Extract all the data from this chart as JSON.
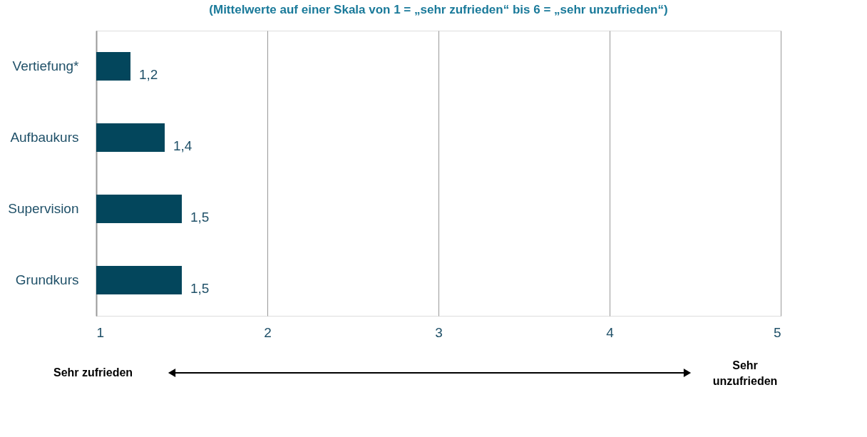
{
  "chart_data": {
    "type": "bar",
    "orientation": "horizontal",
    "subtitle": "(Mittelwerte auf einer Skala von 1 = „sehr zufrieden“ bis 6 = „sehr unzufrieden“)",
    "categories": [
      "Vertiefung*",
      "Aufbaukurs",
      "Supervision",
      "Grundkurs"
    ],
    "values": [
      1.2,
      1.4,
      1.5,
      1.5
    ],
    "value_labels": [
      "1,2",
      "1,4",
      "1,5",
      "1,5"
    ],
    "color": "#03465c",
    "xlim": [
      1,
      5
    ],
    "xticks": [
      1,
      2,
      3,
      4,
      5
    ],
    "grid": "x",
    "annotations": [
      "Sehr zufrieden",
      "Sehr unzufrieden"
    ]
  }
}
